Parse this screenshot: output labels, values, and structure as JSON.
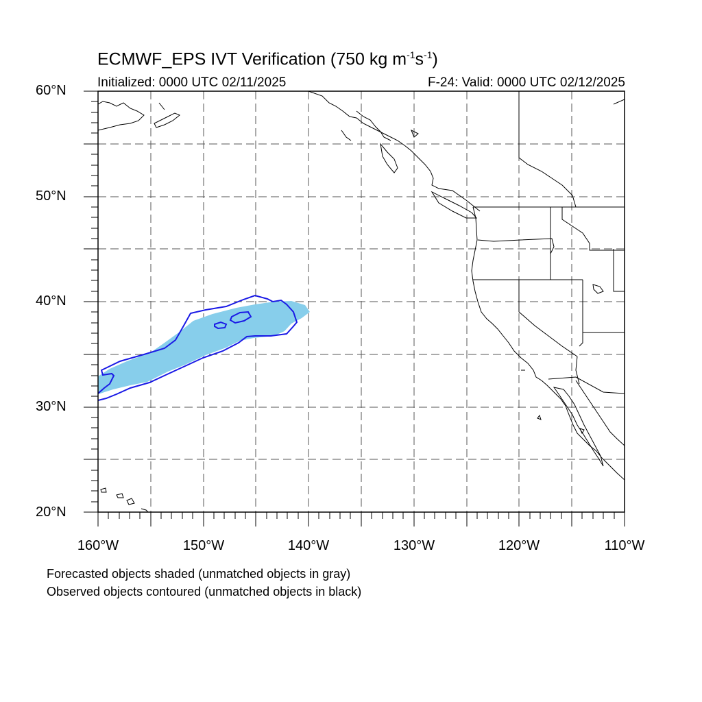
{
  "title": {
    "main": "ECMWF_EPS IVT Verification (750 kg m",
    "sup1": "-1",
    "mid": "s",
    "sup2": "-1",
    "end": ")"
  },
  "subtitle": {
    "initialized": "Initialized: 0000 UTC 02/11/2025",
    "valid": "F-24: Valid: 0000 UTC 02/12/2025"
  },
  "axes": {
    "lat_labels": [
      "60°N",
      "50°N",
      "40°N",
      "30°N",
      "20°N"
    ],
    "lon_labels": [
      "160°W",
      "150°W",
      "140°W",
      "130°W",
      "120°W",
      "110°W"
    ],
    "lat_range": [
      20,
      60
    ],
    "lon_range": [
      -160,
      -110
    ]
  },
  "colors": {
    "forecast_fill": "#87ceeb",
    "observed_contour": "#1a1ae6",
    "coastline": "#000000",
    "grid": "#555555"
  },
  "legend": {
    "line1": "Forecasted objects shaded (unmatched objects in gray)",
    "line2": "Observed objects contoured (unmatched objects in black)"
  }
}
